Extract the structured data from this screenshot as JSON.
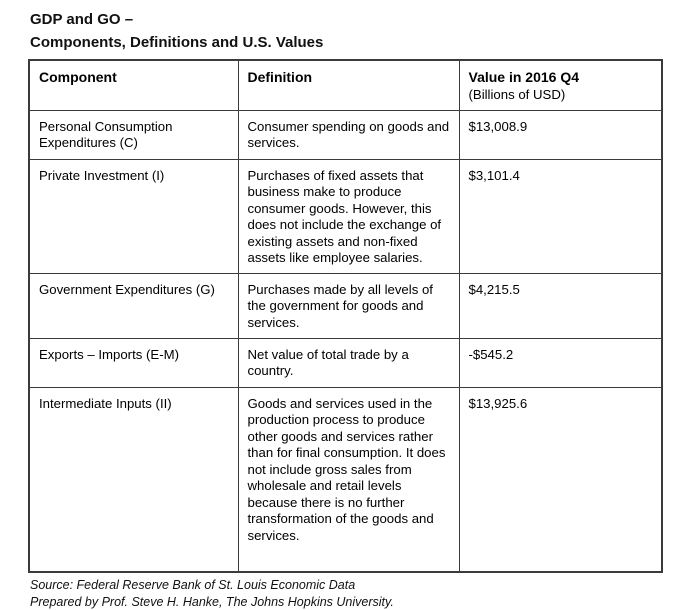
{
  "title": {
    "line1": "GDP and GO –",
    "line2": "Components, Definitions and U.S. Values"
  },
  "table": {
    "headers": {
      "component": "Component",
      "definition": "Definition",
      "value": "Value in 2016 Q4",
      "value_sub": "(Billions of USD)"
    },
    "rows": [
      {
        "component": "Personal Consumption Expenditures (C)",
        "definition": "Consumer spending on goods and services.",
        "value": "$13,008.9"
      },
      {
        "component": "Private Investment (I)",
        "definition": "Purchases of fixed assets that business make to produce consumer goods. However, this does not include the exchange of existing assets and non-fixed assets like employee salaries.",
        "value": "$3,101.4"
      },
      {
        "component": "Government Expenditures (G)",
        "definition": "Purchases made by all levels of the government for goods and services.",
        "value": "$4,215.5"
      },
      {
        "component": "Exports – Imports (E-M)",
        "definition": "Net value of total trade by a country.",
        "value": "-$545.2"
      },
      {
        "component": "Intermediate Inputs (II)",
        "definition": "Goods and services used in the production process to produce other goods and services rather than for final consumption. It does not include gross sales from wholesale and retail levels because there is no further transformation of the goods and services.",
        "value": "$13,925.6"
      }
    ]
  },
  "footer": {
    "source": "Source: Federal Reserve Bank of St. Louis Economic Data",
    "prepared": "Prepared by Prof. Steve H. Hanke, The Johns Hopkins University."
  },
  "colors": {
    "border": "#3b3b3b",
    "text": "#000000",
    "background": "#ffffff"
  }
}
